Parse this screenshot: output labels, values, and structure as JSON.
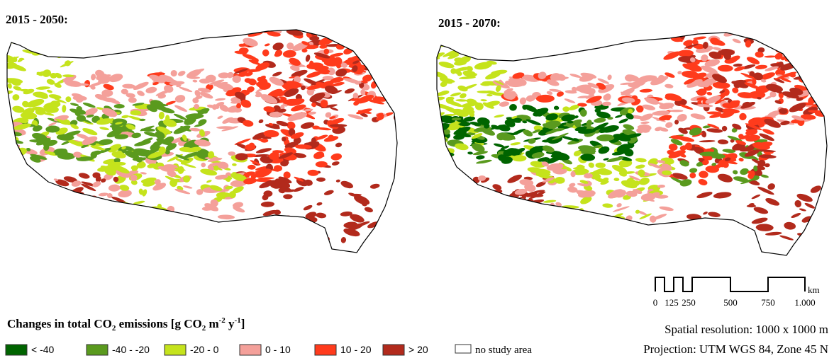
{
  "maps": [
    {
      "title": "2015 - 2050:"
    },
    {
      "title": "2015 - 2070:"
    }
  ],
  "legend": {
    "title": [
      "Changes in total CO",
      "2",
      " emissions [g CO",
      "2",
      "  m",
      "-2",
      " y",
      "-1",
      "]"
    ],
    "items": [
      {
        "label": "< -40",
        "color": "#006400"
      },
      {
        "label": "-40 - -20",
        "color": "#5a9a1e"
      },
      {
        "label": "-20 - 0",
        "color": "#c5e31c"
      },
      {
        "label": "0 - 10",
        "color": "#f4a09a"
      },
      {
        "label": "10 - 20",
        "color": "#ff3b1c"
      },
      {
        "label": "> 20",
        "color": "#b22a1c"
      },
      {
        "label": "no study area",
        "color": "#ffffff"
      }
    ]
  },
  "scale_bar": {
    "labels": [
      "0",
      "125",
      "250",
      "500",
      "750",
      "1.000"
    ],
    "unit": "km"
  },
  "notes": [
    "Spatial resolution: 1000 x 1000 m",
    "Projection: UTM WGS 84, Zone 45 N"
  ]
}
